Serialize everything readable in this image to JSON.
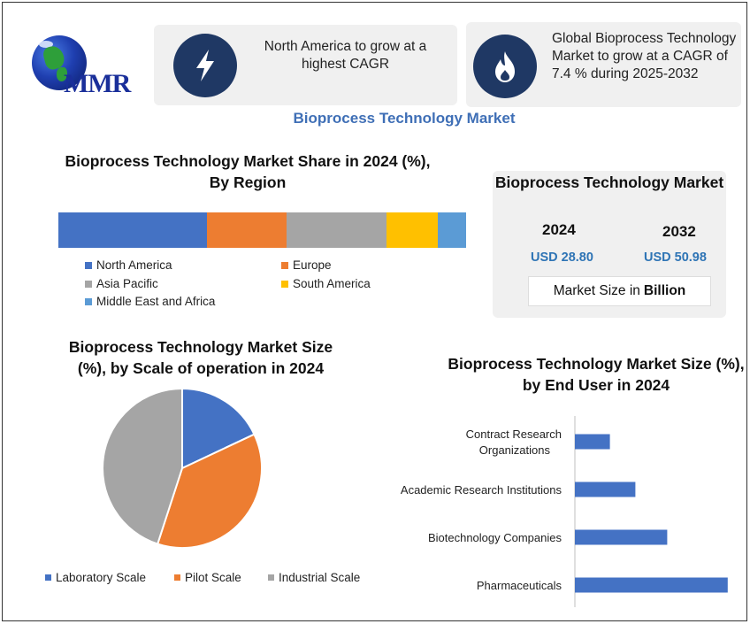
{
  "logo": {
    "text": "MMR"
  },
  "info_boxes": [
    {
      "icon": "lightning-icon",
      "text": "North America to grow at a highest CAGR"
    },
    {
      "icon": "flame-icon",
      "text": "Global Bioprocess Technology Market to grow at a CAGR of 7.4 % during 2025-2032"
    }
  ],
  "main_title": "Bioprocess Technology Market",
  "market_size": {
    "title": "Bioprocess Technology Market",
    "year1": "2024",
    "year2": "2032",
    "value1": "USD 28.80",
    "value2": "USD 50.98",
    "note_prefix": "Market Size in",
    "note_bold": "Billion"
  },
  "colors": {
    "blue": "#4472c4",
    "orange": "#ed7d31",
    "gray": "#a5a5a5",
    "yellow": "#ffc000",
    "light_blue": "#5b9bd5",
    "navy": "#1f3864",
    "title_blue": "#3f6fb6"
  },
  "chart_data": [
    {
      "type": "bar",
      "stacked": true,
      "orientation": "horizontal",
      "title": "Bioprocess Technology Market Share in 2024 (%), By Region",
      "series": [
        {
          "name": "North America",
          "values": [
            36.5
          ]
        },
        {
          "name": "Europe",
          "values": [
            19.5
          ]
        },
        {
          "name": "Asia Pacific",
          "values": [
            24.5
          ]
        },
        {
          "name": "South America",
          "values": [
            12.5
          ]
        },
        {
          "name": "Middle East and Africa",
          "values": [
            7
          ]
        }
      ],
      "legend": "bottom"
    },
    {
      "type": "pie",
      "title": "Bioprocess Technology Market Size (%), by Scale of operation in 2024",
      "categories": [
        "Laboratory Scale",
        "Pilot Scale",
        "Industrial Scale"
      ],
      "values": [
        18,
        37,
        45
      ],
      "legend": "bottom"
    },
    {
      "type": "bar",
      "orientation": "horizontal",
      "title": "Bioprocess Technology Market Size (%), by End User in 2024",
      "categories": [
        "Contract Research Organizations",
        "Academic Research Institutions",
        "Biotechnology Companies",
        "Pharmaceuticals"
      ],
      "values": [
        11,
        19,
        29,
        48
      ],
      "xlim": [
        0,
        50
      ]
    }
  ]
}
